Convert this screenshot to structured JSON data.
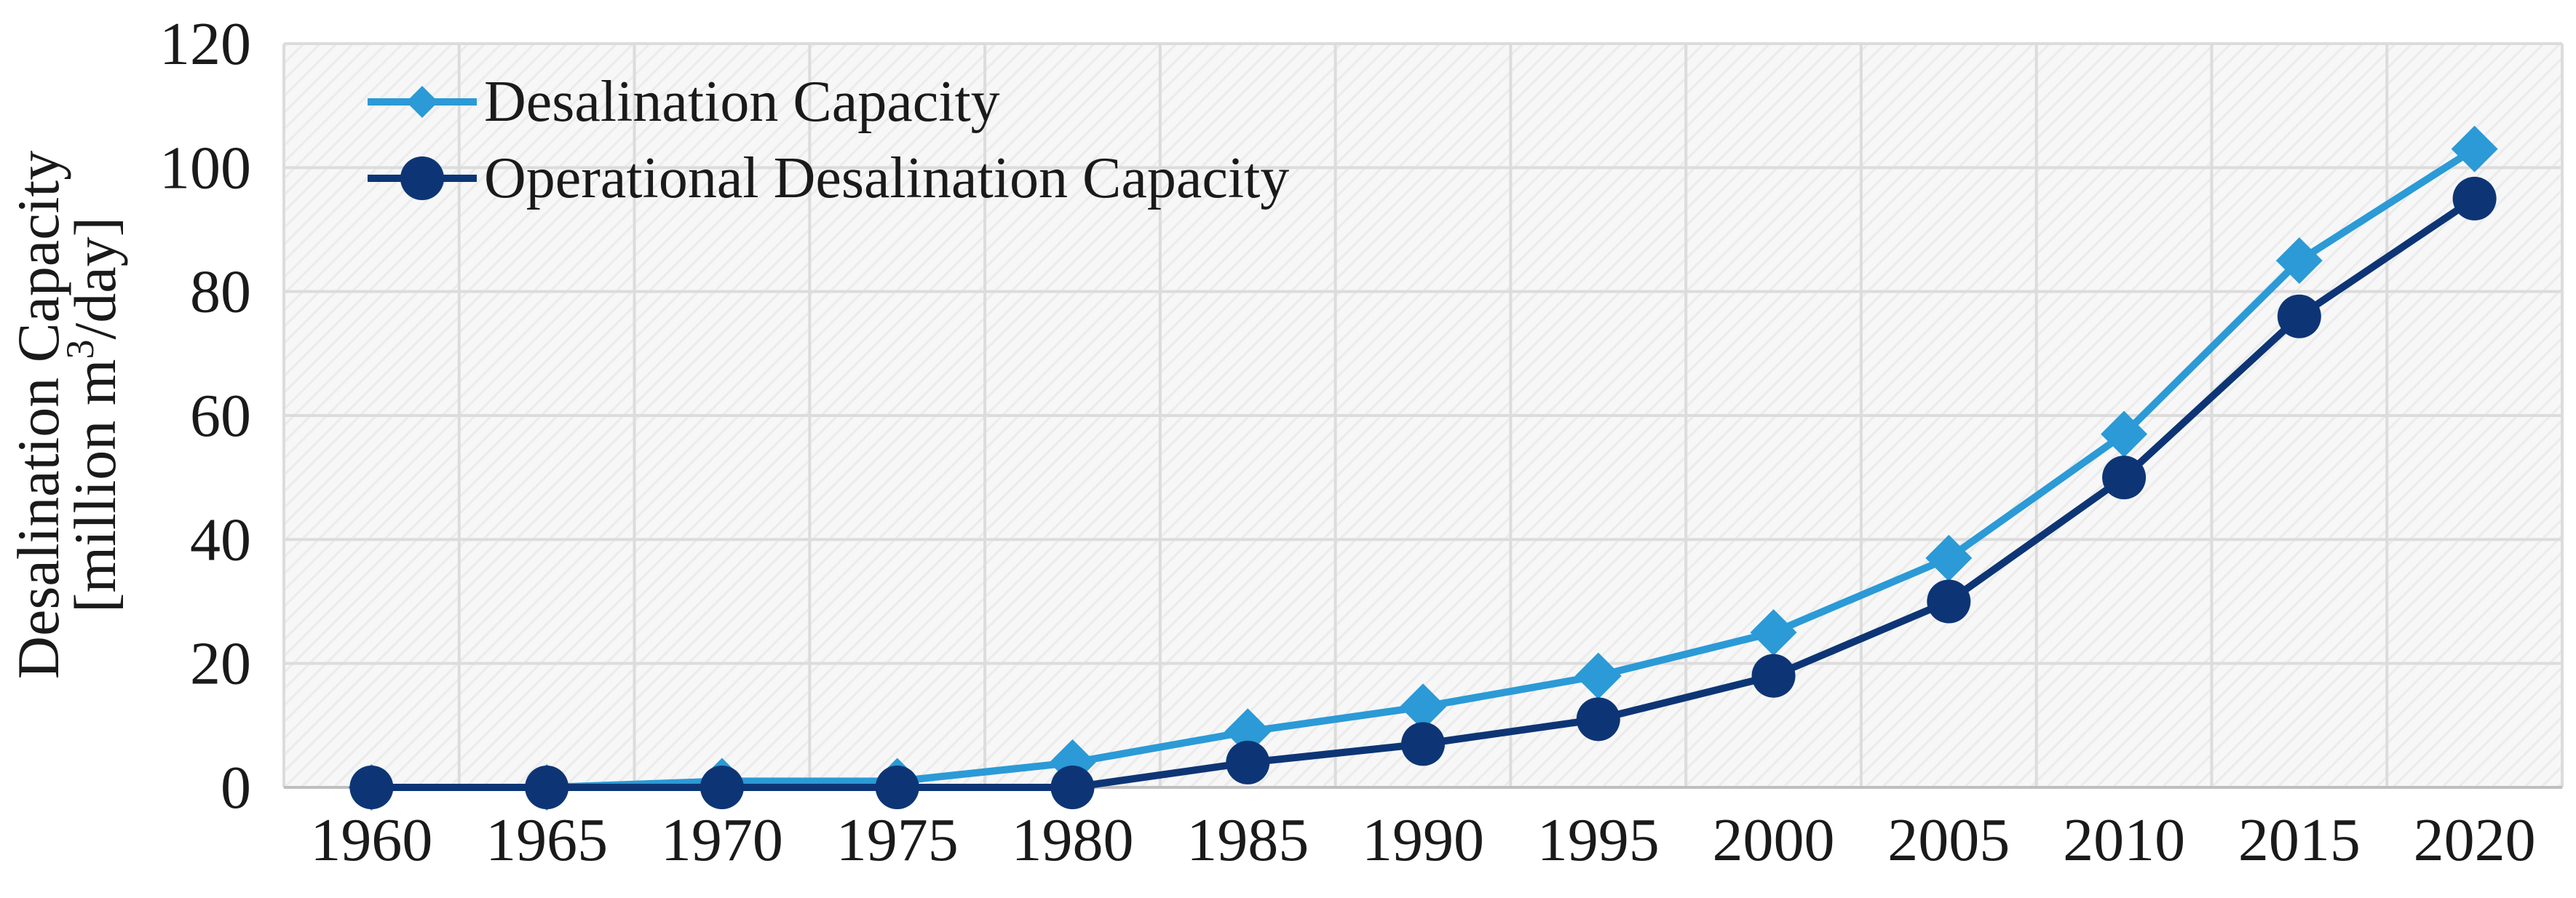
{
  "chart_data": {
    "type": "line",
    "title": "",
    "xlabel": "",
    "ylabel": "Desalination Capacity",
    "ylabel_line2_prefix": "[million m",
    "ylabel_line2_sup": "3",
    "ylabel_line2_suffix": "/day]",
    "categories": [
      "1960",
      "1965",
      "1970",
      "1975",
      "1980",
      "1985",
      "1990",
      "1995",
      "2000",
      "2005",
      "2010",
      "2015",
      "2020"
    ],
    "ylim": [
      0,
      120
    ],
    "yticks": [
      "0",
      "20",
      "40",
      "60",
      "80",
      "100",
      "120"
    ],
    "grid": true,
    "legend_position": "top-left",
    "series": [
      {
        "name": "Desalination Capacity",
        "color": "#2b9ad6",
        "marker": "diamond",
        "values": [
          0,
          0,
          1,
          1,
          4,
          9,
          13,
          18,
          25,
          37,
          57,
          85,
          103
        ]
      },
      {
        "name": "Operational Desalination Capacity",
        "color": "#0d3575",
        "marker": "circle",
        "values": [
          0,
          0,
          0,
          0,
          0,
          4,
          7,
          11,
          18,
          30,
          50,
          76,
          95
        ]
      }
    ]
  }
}
